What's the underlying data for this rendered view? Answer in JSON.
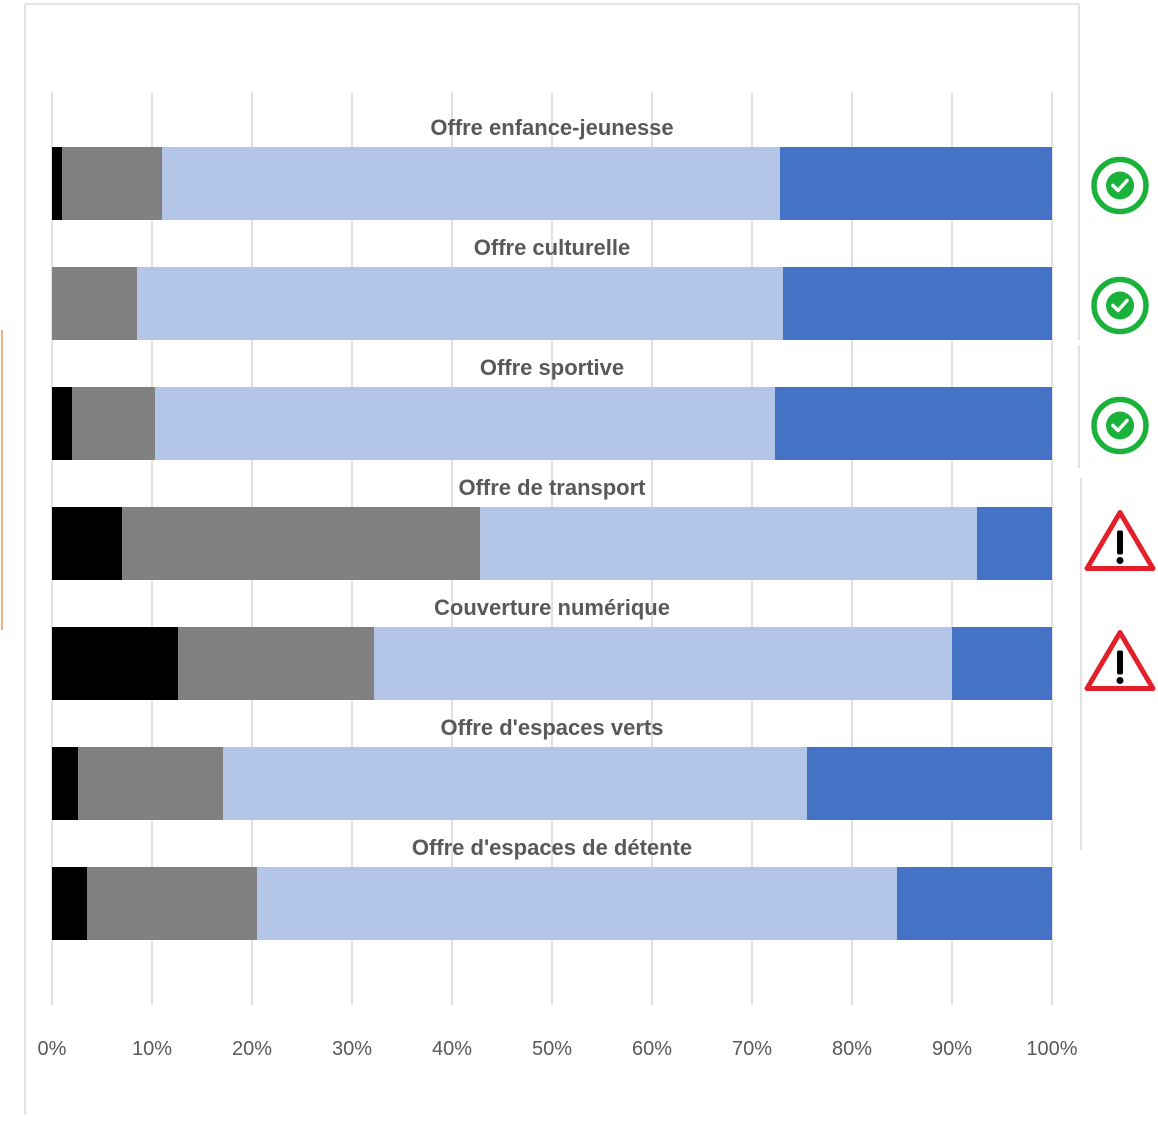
{
  "chart_data": {
    "type": "bar",
    "orientation": "horizontal",
    "stacked": "percent",
    "categories": [
      "Offre enfance-jeunesse",
      "Offre culturelle",
      "Offre sportive",
      "Offre de transport",
      "Couverture numérique",
      "Offre d'espaces verts",
      "Offre d'espaces de détente"
    ],
    "series": [
      {
        "color": "#000000",
        "values": [
          1,
          0,
          2,
          7,
          12.6,
          2.6,
          3.5
        ]
      },
      {
        "color": "#808080",
        "values": [
          10,
          8.5,
          8.3,
          35.8,
          19.6,
          14.5,
          17
        ]
      },
      {
        "color": "#b4c6e7",
        "values": [
          61.8,
          64.6,
          62,
          49.7,
          57.8,
          58.4,
          64
        ]
      },
      {
        "color": "#4472c4",
        "values": [
          27.2,
          26.9,
          27.7,
          7.5,
          10,
          24.5,
          15.5
        ]
      }
    ],
    "xlim": [
      0,
      100
    ],
    "x_ticks": [
      "0%",
      "10%",
      "20%",
      "30%",
      "40%",
      "50%",
      "60%",
      "70%",
      "80%",
      "90%",
      "100%"
    ],
    "grid": true,
    "status_icons": [
      "check-circle",
      "check-circle",
      "check-circle",
      "warning-triangle",
      "warning-triangle",
      "none",
      "none"
    ],
    "colors": {
      "check": "#1ab23a",
      "warning": "#e3202a",
      "grid": "#d9d9d9",
      "label": "#595959"
    }
  }
}
